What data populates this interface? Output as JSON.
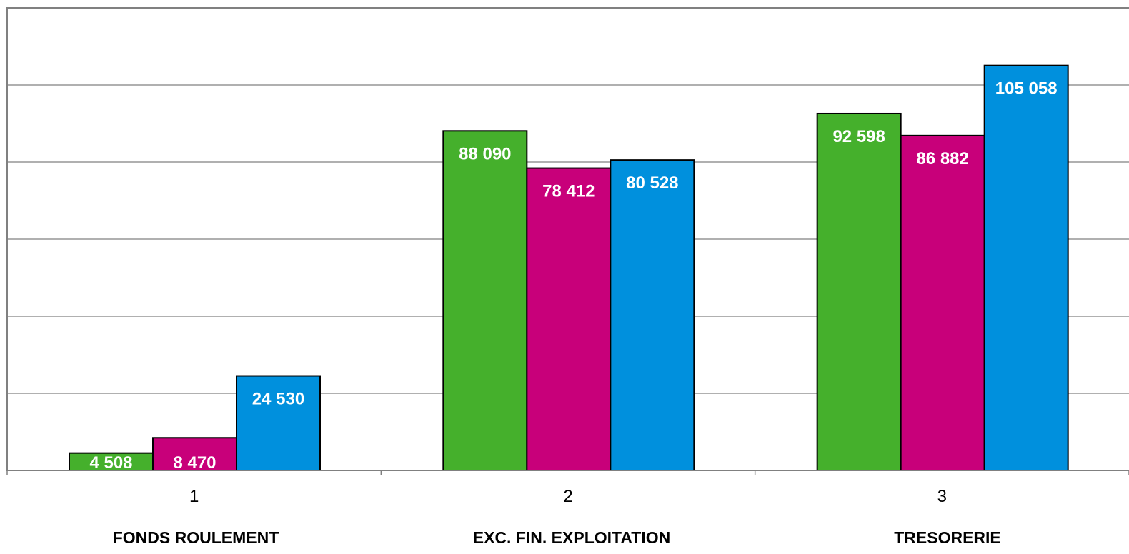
{
  "chart_data": {
    "type": "bar",
    "categories": [
      "1",
      "2",
      "3"
    ],
    "category_names": [
      "FONDS ROULEMENT",
      "EXC. FIN. EXPLOITATION",
      "TRESORERIE"
    ],
    "series": [
      {
        "values": [
          4508,
          88090,
          92598
        ],
        "labels": [
          "4 508",
          "88 090",
          "92 598"
        ],
        "color": "#45b02c"
      },
      {
        "values": [
          8470,
          78412,
          86882
        ],
        "labels": [
          "8 470",
          "78 412",
          "86 882"
        ],
        "color": "#c8007a"
      },
      {
        "values": [
          24530,
          80528,
          105058
        ],
        "labels": [
          "24 530",
          "80 528",
          "105 058"
        ],
        "color": "#0090dd"
      }
    ],
    "ylim": [
      0,
      120000
    ],
    "y_gridlines": [
      0,
      20000,
      40000,
      60000,
      80000,
      100000,
      120000
    ],
    "grid": true,
    "legend": "none",
    "title": "",
    "xlabel": "",
    "ylabel": ""
  }
}
